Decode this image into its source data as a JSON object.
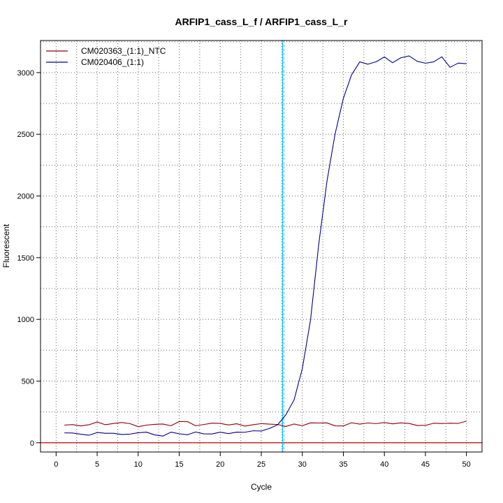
{
  "chart_data": {
    "type": "line",
    "title": "ARFIP1_cass_L_f / ARFIP1_cass_L_r",
    "xlabel": "Cycle",
    "ylabel": "Fluorescent",
    "xlim": [
      -1.9,
      51.9
    ],
    "ylim": [
      -75,
      3260
    ],
    "x_ticks": [
      0,
      5,
      10,
      15,
      20,
      25,
      30,
      35,
      40,
      45,
      50
    ],
    "y_ticks": [
      0,
      500,
      1000,
      1500,
      2000,
      2500,
      3000
    ],
    "grid": true,
    "grid_x_minor_step": 2.5,
    "grid_y_step": 250,
    "legend_position": "top-left",
    "threshold_line": {
      "orientation": "vertical",
      "x": 27.6,
      "color": "#00bfff"
    },
    "baseline_line": {
      "orientation": "horizontal",
      "y": 0,
      "color": "#cc0000"
    },
    "series": [
      {
        "name": "CM020363_(1:1)_NTC",
        "color": "#8b0000",
        "x": [
          1,
          2,
          3,
          4,
          5,
          6,
          7,
          8,
          9,
          10,
          11,
          12,
          13,
          14,
          15,
          16,
          17,
          18,
          19,
          20,
          21,
          22,
          23,
          24,
          25,
          26,
          27,
          28,
          29,
          30,
          31,
          32,
          33,
          34,
          35,
          36,
          37,
          38,
          39,
          40,
          41,
          42,
          43,
          44,
          45,
          46,
          47,
          48,
          49,
          50
        ],
        "values": [
          143,
          147,
          136,
          146,
          168,
          146,
          156,
          164,
          155,
          130,
          143,
          149,
          152,
          138,
          172,
          171,
          138,
          148,
          159,
          157,
          144,
          154,
          135,
          146,
          155,
          151,
          148,
          132,
          152,
          138,
          161,
          160,
          161,
          137,
          136,
          162,
          151,
          160,
          155,
          164,
          153,
          161,
          157,
          140,
          141,
          158,
          156,
          158,
          157,
          175
        ]
      },
      {
        "name": "CM020406_(1:1)",
        "color": "#00008b",
        "x": [
          1,
          2,
          3,
          4,
          5,
          6,
          7,
          8,
          9,
          10,
          11,
          12,
          13,
          14,
          15,
          16,
          17,
          18,
          19,
          20,
          21,
          22,
          23,
          24,
          25,
          26,
          27,
          28,
          29,
          30,
          31,
          32,
          33,
          34,
          35,
          36,
          37,
          38,
          39,
          40,
          41,
          42,
          43,
          44,
          45,
          46,
          47,
          48,
          49,
          50
        ],
        "values": [
          80,
          79,
          69,
          61,
          83,
          77,
          77,
          67,
          70,
          81,
          86,
          64,
          54,
          86,
          73,
          65,
          87,
          72,
          71,
          86,
          74,
          86,
          85,
          97,
          95,
          116,
          146,
          227,
          348,
          601,
          995,
          1608,
          2118,
          2505,
          2791,
          2982,
          3087,
          3068,
          3088,
          3127,
          3080,
          3120,
          3135,
          3092,
          3076,
          3087,
          3128,
          3043,
          3077,
          3072
        ]
      }
    ]
  }
}
